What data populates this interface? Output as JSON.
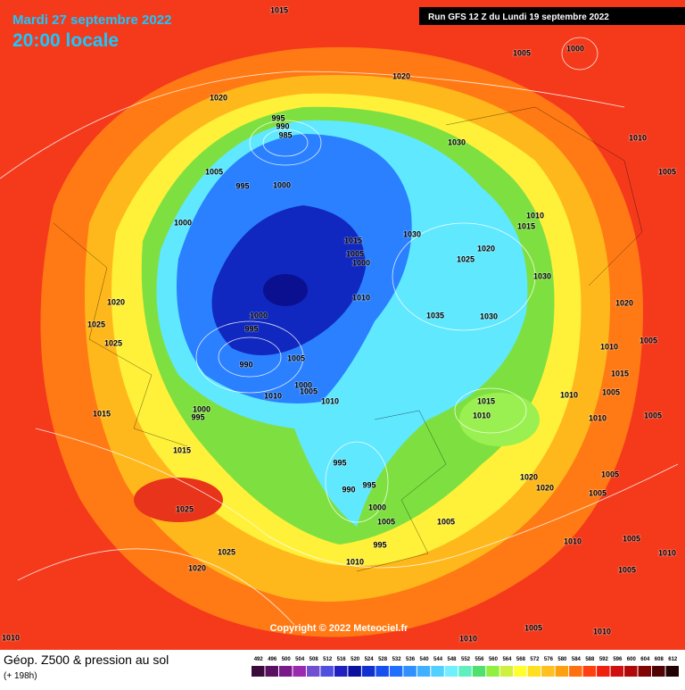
{
  "header": {
    "date": "Mardi 27 septembre 2022",
    "time": "20:00 locale",
    "run": "Run GFS 12 Z du Lundi 19 septembre 2022"
  },
  "map": {
    "copyright": "Copyright © 2022 Meteociel.fr",
    "isobar_labels": [
      1015,
      1005,
      1000,
      1020,
      1020,
      995,
      990,
      985,
      1030,
      1010,
      1005,
      995,
      1000,
      1005,
      1010,
      1015,
      1000,
      1030,
      1015,
      1020,
      1005,
      1000,
      1025,
      1030,
      1010,
      1020,
      1020,
      1035,
      1030,
      1000,
      995,
      1025,
      1025,
      1010,
      1005,
      1005,
      990,
      1015,
      1000,
      1005,
      1010,
      1010,
      1010,
      1005,
      1015,
      1010,
      1015,
      1000,
      995,
      1010,
      1005,
      1015,
      995,
      990,
      995,
      1000,
      1005,
      1020,
      1020,
      1005,
      1005,
      1005,
      1025,
      995,
      1025,
      1010,
      1010,
      1005,
      1010,
      1020,
      1005,
      1005,
      1010,
      1010,
      1010
    ]
  },
  "footer": {
    "title": "Géop. Z500 & pression au sol",
    "lead": "(+ 198h)"
  },
  "legend": {
    "values": [
      492,
      496,
      500,
      504,
      508,
      512,
      516,
      520,
      524,
      528,
      532,
      536,
      540,
      544,
      548,
      552,
      556,
      560,
      564,
      568,
      572,
      576,
      580,
      584,
      588,
      592,
      596,
      600,
      604,
      608,
      612
    ],
    "colors": [
      "#3a0a3a",
      "#5a1060",
      "#7a1a8a",
      "#9a2ab0",
      "#7050d0",
      "#5050e0",
      "#2020c0",
      "#0a10a0",
      "#1030d0",
      "#1850f0",
      "#2070ff",
      "#3090ff",
      "#40b0ff",
      "#50d0ff",
      "#70f0ff",
      "#60f0c0",
      "#50e070",
      "#90f040",
      "#d0f040",
      "#ffff30",
      "#ffe020",
      "#ffc020",
      "#ffa010",
      "#ff7010",
      "#ff4010",
      "#f02010",
      "#d01010",
      "#b00808",
      "#800505",
      "#500303",
      "#200000"
    ]
  }
}
